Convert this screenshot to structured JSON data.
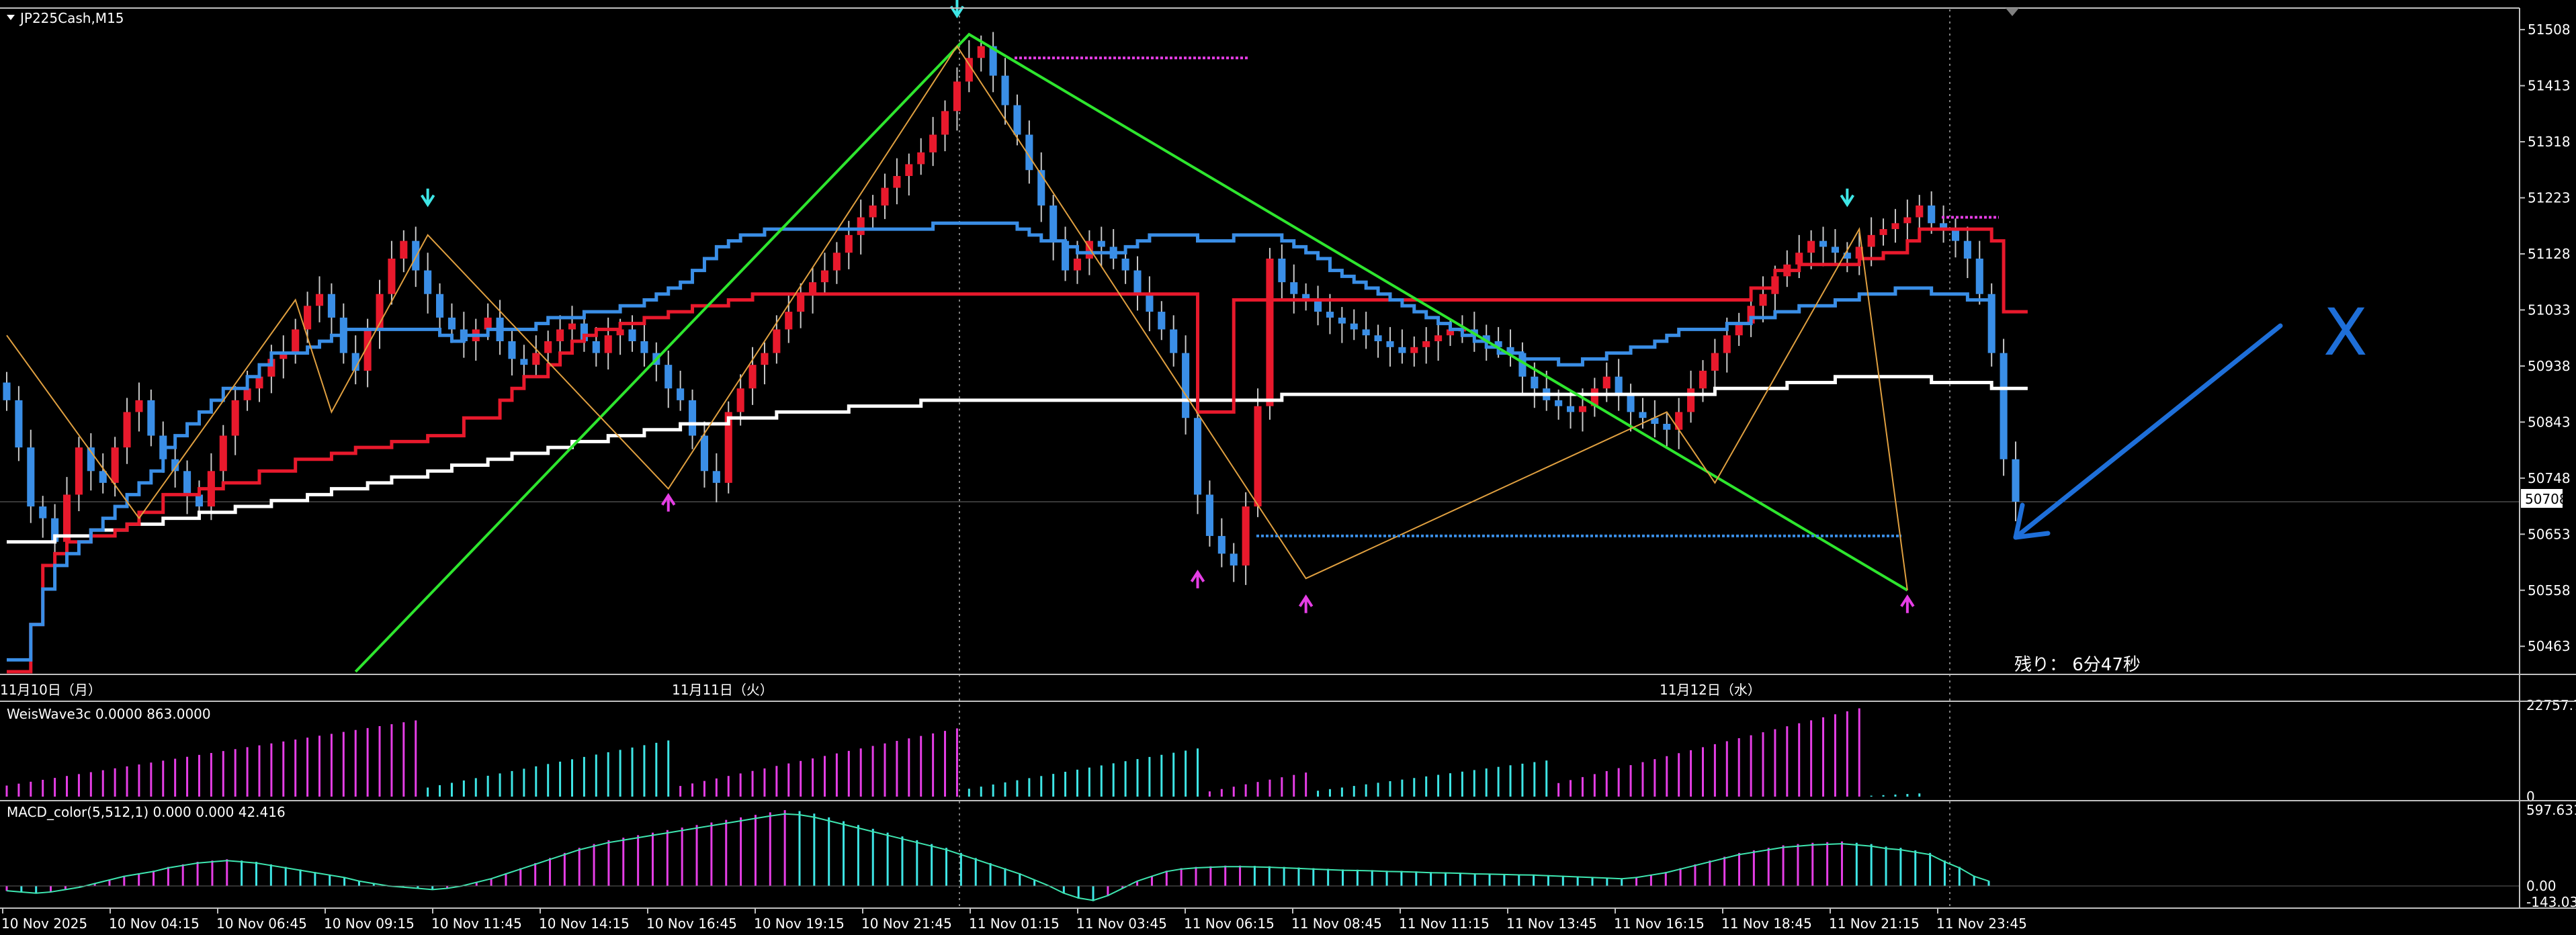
{
  "symbol_title": "JP225Cash,M15",
  "countdown": "残り：  6分47秒",
  "annotation_mark": "X",
  "colors": {
    "background": "#000000",
    "bull_candle": "#e8192c",
    "bear_candle": "#3a8ee6",
    "ma_red": "#e8192c",
    "ma_blue": "#3a8ee6",
    "ma_white": "#ffffff",
    "trend_green": "#2ee62e",
    "zigzag": "#e0a040",
    "arrow_cyan": "#3ee6e6",
    "arrow_magenta": "#e63ee6",
    "annotation_blue": "#1e6fd9"
  },
  "chart_data": [
    {
      "type": "candlestick",
      "name": "JP225Cash,M15",
      "price_axis_labels": [
        "51508",
        "51413",
        "51318",
        "51223",
        "51128",
        "51033",
        "50938",
        "50843",
        "50748",
        "50653",
        "50558",
        "50463"
      ],
      "price_range": [
        50420,
        51540
      ],
      "current_price_label": "50708",
      "date_labels": [
        "11月10日（月）",
        "11月11日（火）",
        "11月12日（水）"
      ],
      "time_axis_labels": [
        "10 Nov 2025",
        "10 Nov 04:15",
        "10 Nov 06:45",
        "10 Nov 09:15",
        "10 Nov 11:45",
        "10 Nov 14:15",
        "10 Nov 16:45",
        "10 Nov 19:15",
        "10 Nov 21:45",
        "11 Nov 01:15",
        "11 Nov 03:45",
        "11 Nov 06:15",
        "11 Nov 08:45",
        "11 Nov 11:15",
        "11 Nov 13:45",
        "11 Nov 16:15",
        "11 Nov 18:45",
        "11 Nov 21:15",
        "11 Nov 23:45"
      ],
      "close": [
        50880,
        50800,
        50700,
        50680,
        50640,
        50720,
        50800,
        50760,
        50740,
        50800,
        50860,
        50880,
        50820,
        50780,
        50760,
        50720,
        50700,
        50760,
        50820,
        50880,
        50900,
        50920,
        50950,
        50960,
        51000,
        51040,
        51060,
        51020,
        50960,
        50930,
        51000,
        51060,
        51120,
        51150,
        51100,
        51060,
        51020,
        51000,
        50980,
        51000,
        51020,
        50980,
        50950,
        50940,
        50960,
        50980,
        51000,
        51010,
        50980,
        50960,
        50990,
        51000,
        50980,
        50960,
        50940,
        50900,
        50880,
        50820,
        50760,
        50740,
        50860,
        50900,
        50940,
        50960,
        51000,
        51030,
        51060,
        51080,
        51100,
        51130,
        51160,
        51190,
        51210,
        51240,
        51260,
        51280,
        51300,
        51330,
        51370,
        51420,
        51460,
        51480,
        51430,
        51380,
        51330,
        51270,
        51210,
        51150,
        51100,
        51120,
        51150,
        51140,
        51120,
        51100,
        51060,
        51030,
        51000,
        50960,
        50850,
        50720,
        50650,
        50620,
        50600,
        50700,
        50870,
        51120,
        51080,
        51060,
        51050,
        51030,
        51020,
        51010,
        51000,
        50990,
        50980,
        50970,
        50960,
        50970,
        50980,
        50990,
        51000,
        51000,
        50990,
        50980,
        50970,
        50960,
        50920,
        50900,
        50880,
        50870,
        50860,
        50870,
        50900,
        50920,
        50890,
        50860,
        50850,
        50840,
        50830,
        50860,
        50900,
        50930,
        50960,
        50990,
        51010,
        51040,
        51060,
        51090,
        51110,
        51130,
        51150,
        51140,
        51130,
        51120,
        51140,
        51160,
        51170,
        51180,
        51190,
        51210,
        51180,
        51170,
        51150,
        51120,
        51060,
        50960,
        50780,
        50708
      ],
      "series": [
        {
          "name": "ma_white",
          "values": [
            50640,
            50640,
            50640,
            50640,
            50650,
            50650,
            50650,
            50660,
            50660,
            50660,
            50670,
            50670,
            50670,
            50680,
            50680,
            50680,
            50690,
            50690,
            50690,
            50700,
            50700,
            50700,
            50710,
            50710,
            50710,
            50720,
            50720,
            50730,
            50730,
            50730,
            50740,
            50740,
            50750,
            50750,
            50750,
            50760,
            50760,
            50770,
            50770,
            50770,
            50780,
            50780,
            50790,
            50790,
            50790,
            50800,
            50800,
            50810,
            50810,
            50810,
            50820,
            50820,
            50820,
            50830,
            50830,
            50830,
            50840,
            50840,
            50840,
            50840,
            50850,
            50850,
            50850,
            50850,
            50860,
            50860,
            50860,
            50860,
            50860,
            50860,
            50870,
            50870,
            50870,
            50870,
            50870,
            50870,
            50880,
            50880,
            50880,
            50880,
            50880,
            50880,
            50880,
            50880,
            50880,
            50880,
            50880,
            50880,
            50880,
            50880,
            50880,
            50880,
            50880,
            50880,
            50880,
            50880,
            50880,
            50880,
            50880,
            50880,
            50880,
            50880,
            50880,
            50880,
            50880,
            50880,
            50890,
            50890,
            50890,
            50890,
            50890,
            50890,
            50890,
            50890,
            50890,
            50890,
            50890,
            50890,
            50890,
            50890,
            50890,
            50890,
            50890,
            50890,
            50890,
            50890,
            50890,
            50890,
            50890,
            50890,
            50890,
            50890,
            50890,
            50890,
            50890,
            50890,
            50890,
            50890,
            50890,
            50890,
            50890,
            50890,
            50900,
            50900,
            50900,
            50900,
            50900,
            50900,
            50910,
            50910,
            50910,
            50910,
            50920,
            50920,
            50920,
            50920,
            50920,
            50920,
            50920,
            50920,
            50910,
            50910,
            50910,
            50910,
            50910,
            50900,
            50900,
            50900,
            50900
          ]
        },
        {
          "name": "ma_red",
          "values": [
            50420,
            50420,
            50500,
            50600,
            50620,
            50640,
            50640,
            50650,
            50650,
            50660,
            50670,
            50690,
            50690,
            50720,
            50720,
            50720,
            50730,
            50730,
            50740,
            50740,
            50740,
            50760,
            50760,
            50760,
            50780,
            50780,
            50780,
            50790,
            50790,
            50800,
            50800,
            50800,
            50810,
            50810,
            50810,
            50820,
            50820,
            50820,
            50850,
            50850,
            50850,
            50880,
            50900,
            50920,
            50920,
            50940,
            50960,
            50980,
            50990,
            51000,
            51000,
            51010,
            51010,
            51020,
            51020,
            51030,
            51030,
            51040,
            51040,
            51040,
            51050,
            51050,
            51060,
            51060,
            51060,
            51060,
            51060,
            51060,
            51060,
            51060,
            51060,
            51060,
            51060,
            51060,
            51060,
            51060,
            51060,
            51060,
            51060,
            51060,
            51060,
            51060,
            51060,
            51060,
            51060,
            51060,
            51060,
            51060,
            51060,
            51060,
            51060,
            51060,
            51060,
            51060,
            51060,
            51060,
            51060,
            51060,
            51060,
            50860,
            50860,
            50860,
            51050,
            51050,
            51050,
            51050,
            51050,
            51050,
            51050,
            51050,
            51050,
            51050,
            51050,
            51050,
            51050,
            51050,
            51050,
            51050,
            51050,
            51050,
            51050,
            51050,
            51050,
            51050,
            51050,
            51050,
            51050,
            51050,
            51050,
            51050,
            51050,
            51050,
            51050,
            51050,
            51050,
            51050,
            51050,
            51050,
            51050,
            51050,
            51050,
            51050,
            51050,
            51050,
            51050,
            51070,
            51070,
            51100,
            51100,
            51110,
            51110,
            51110,
            51110,
            51110,
            51120,
            51120,
            51130,
            51130,
            51150,
            51170,
            51170,
            51170,
            51170,
            51170,
            51170,
            51150,
            51030,
            51030,
            51030
          ]
        },
        {
          "name": "ma_blue",
          "values": [
            50440,
            50440,
            50500,
            50560,
            50600,
            50620,
            50640,
            50660,
            50680,
            50700,
            50720,
            50740,
            50760,
            50800,
            50820,
            50840,
            50860,
            50880,
            50900,
            50900,
            50920,
            50940,
            50960,
            50960,
            50960,
            50970,
            50980,
            50990,
            51000,
            51000,
            51000,
            51000,
            51000,
            51000,
            51000,
            51000,
            50990,
            50980,
            50990,
            50990,
            51000,
            51000,
            51000,
            51000,
            51010,
            51020,
            51020,
            51020,
            51030,
            51030,
            51030,
            51040,
            51040,
            51050,
            51060,
            51070,
            51080,
            51100,
            51120,
            51140,
            51150,
            51160,
            51160,
            51170,
            51170,
            51170,
            51170,
            51170,
            51170,
            51170,
            51170,
            51170,
            51170,
            51170,
            51170,
            51170,
            51170,
            51180,
            51180,
            51180,
            51180,
            51180,
            51180,
            51180,
            51170,
            51160,
            51150,
            51150,
            51140,
            51130,
            51130,
            51130,
            51130,
            51140,
            51150,
            51160,
            51160,
            51160,
            51160,
            51150,
            51150,
            51150,
            51160,
            51160,
            51160,
            51160,
            51150,
            51140,
            51130,
            51120,
            51100,
            51090,
            51080,
            51070,
            51060,
            51050,
            51040,
            51030,
            51020,
            51010,
            51000,
            50990,
            50980,
            50970,
            50960,
            50960,
            50950,
            50950,
            50950,
            50940,
            50940,
            50950,
            50950,
            50960,
            50960,
            50970,
            50970,
            50980,
            50990,
            51000,
            51000,
            51000,
            51000,
            51010,
            51010,
            51020,
            51020,
            51030,
            51030,
            51040,
            51040,
            51040,
            51050,
            51050,
            51060,
            51060,
            51060,
            51070,
            51070,
            51070,
            51060,
            51060,
            51060,
            51050,
            51050,
            51050
          ]
        },
        {
          "name": "trend_green",
          "points": [
            [
              29,
              50420
            ],
            [
              80,
              51500
            ],
            [
              158,
              50558
            ]
          ]
        },
        {
          "name": "zigzag",
          "points": [
            [
              0,
              50990
            ],
            [
              11,
              50680
            ],
            [
              24,
              51050
            ],
            [
              27,
              50860
            ],
            [
              35,
              51160
            ],
            [
              55,
              50730
            ],
            [
              79,
              51480
            ],
            [
              108,
              50578
            ],
            [
              138,
              50860
            ],
            [
              142,
              50740
            ],
            [
              154,
              51170
            ],
            [
              158,
              50558
            ]
          ]
        },
        {
          "name": "arrows",
          "up_magenta": [
            [
              55,
              50730
            ],
            [
              99,
              50600
            ],
            [
              108,
              50558
            ],
            [
              158,
              50558
            ]
          ],
          "down_cyan": [
            [
              35,
              51200
            ],
            [
              79,
              51520
            ],
            [
              153,
              51200
            ]
          ]
        }
      ]
    },
    {
      "type": "bar",
      "name": "WeisWave3c 0.0000 863.0000",
      "axis_labels": [
        "22757.7",
        "0"
      ],
      "range": [
        0,
        22757.7
      ],
      "waves": [
        {
          "from": 0,
          "to": 34,
          "color": "#e63ee6",
          "peak": 19000
        },
        {
          "from": 35,
          "to": 55,
          "color": "#3ee6e6",
          "peak": 14000
        },
        {
          "from": 56,
          "to": 79,
          "color": "#e63ee6",
          "peak": 17000
        },
        {
          "from": 80,
          "to": 99,
          "color": "#3ee6e6",
          "peak": 12000
        },
        {
          "from": 100,
          "to": 108,
          "color": "#e63ee6",
          "peak": 6000
        },
        {
          "from": 109,
          "to": 128,
          "color": "#3ee6e6",
          "peak": 9000
        },
        {
          "from": 129,
          "to": 154,
          "color": "#e63ee6",
          "peak": 22000
        },
        {
          "from": 155,
          "to": 159,
          "color": "#3ee6e6",
          "peak": 800
        }
      ]
    },
    {
      "type": "bar",
      "name": "MACD_color(5,512,1) 0.000 0.000 42.416",
      "axis_labels": [
        "597.631",
        "0.00",
        "-143.033"
      ],
      "range": [
        -143.033,
        597.631
      ],
      "values": [
        -40,
        -50,
        -60,
        -50,
        -30,
        -10,
        20,
        50,
        80,
        100,
        120,
        150,
        170,
        190,
        200,
        210,
        200,
        190,
        170,
        150,
        130,
        110,
        90,
        70,
        40,
        20,
        0,
        -10,
        -20,
        -30,
        -20,
        0,
        30,
        60,
        100,
        140,
        180,
        220,
        260,
        300,
        330,
        360,
        380,
        400,
        420,
        440,
        460,
        480,
        500,
        520,
        540,
        560,
        580,
        597,
        590,
        570,
        540,
        510,
        480,
        450,
        420,
        390,
        360,
        330,
        300,
        260,
        220,
        180,
        140,
        100,
        50,
        0,
        -60,
        -100,
        -120,
        -80,
        -20,
        40,
        80,
        120,
        140,
        150,
        155,
        160,
        160,
        158,
        155,
        150,
        145,
        140,
        135,
        130,
        128,
        125,
        120,
        118,
        115,
        110,
        108,
        105,
        100,
        98,
        95,
        92,
        90,
        85,
        80,
        75,
        70,
        65,
        60,
        70,
        90,
        110,
        140,
        170,
        200,
        230,
        260,
        280,
        300,
        320,
        330,
        340,
        345,
        350,
        340,
        330,
        310,
        300,
        280,
        260,
        200,
        150,
        80,
        40
      ]
    }
  ]
}
